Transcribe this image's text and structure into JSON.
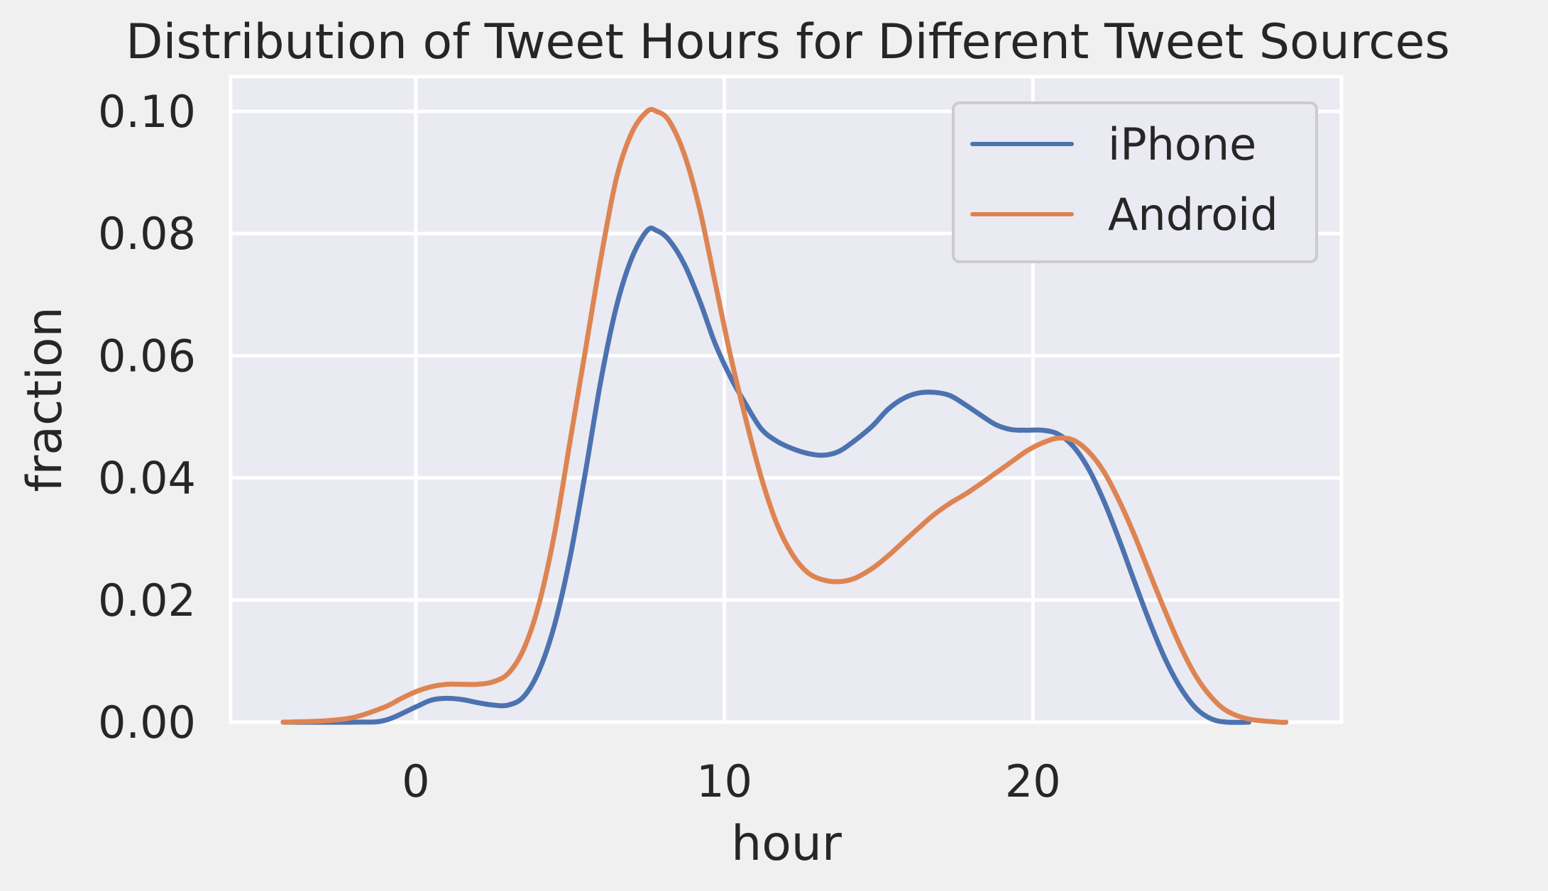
{
  "chart_data": {
    "type": "line",
    "title": "Distribution of Tweet Hours for Different Tweet Sources",
    "xlabel": "hour",
    "ylabel": "fraction",
    "xlim": [
      -6,
      30
    ],
    "ylim": [
      0,
      0.1
    ],
    "x_ticks": [
      0,
      10,
      20
    ],
    "x_tick_labels": [
      "0",
      "10",
      "20"
    ],
    "y_ticks": [
      0,
      0.02,
      0.04,
      0.06,
      0.08,
      0.1
    ],
    "y_tick_labels": [
      "0.00",
      "0.02",
      "0.04",
      "0.06",
      "0.08",
      "0.10"
    ],
    "grid": true,
    "legend_position": "top-right",
    "background_color": "#eaeaf2",
    "series": [
      {
        "name": "iPhone",
        "color": "#4c72b0",
        "points": [
          [
            -4.3,
            0.0
          ],
          [
            -2,
            0.0
          ],
          [
            -1,
            0.0003
          ],
          [
            0,
            0.0025
          ],
          [
            0.5,
            0.0036
          ],
          [
            1,
            0.0039
          ],
          [
            1.5,
            0.0037
          ],
          [
            2,
            0.0032
          ],
          [
            2.5,
            0.0028
          ],
          [
            3,
            0.0028
          ],
          [
            3.5,
            0.0042
          ],
          [
            4,
            0.0085
          ],
          [
            4.5,
            0.016
          ],
          [
            5,
            0.027
          ],
          [
            5.5,
            0.041
          ],
          [
            6,
            0.056
          ],
          [
            6.5,
            0.068
          ],
          [
            7,
            0.076
          ],
          [
            7.5,
            0.0805
          ],
          [
            7.8,
            0.0805
          ],
          [
            8.2,
            0.079
          ],
          [
            8.7,
            0.075
          ],
          [
            9.2,
            0.069
          ],
          [
            9.7,
            0.062
          ],
          [
            10.2,
            0.0565
          ],
          [
            10.7,
            0.052
          ],
          [
            11.2,
            0.048
          ],
          [
            11.7,
            0.046
          ],
          [
            12.2,
            0.0448
          ],
          [
            12.7,
            0.044
          ],
          [
            13.2,
            0.0437
          ],
          [
            13.7,
            0.0443
          ],
          [
            14.2,
            0.046
          ],
          [
            14.8,
            0.0485
          ],
          [
            15.3,
            0.0512
          ],
          [
            15.8,
            0.053
          ],
          [
            16.3,
            0.0539
          ],
          [
            16.8,
            0.054
          ],
          [
            17.3,
            0.0535
          ],
          [
            17.8,
            0.052
          ],
          [
            18.3,
            0.0503
          ],
          [
            18.8,
            0.0487
          ],
          [
            19.3,
            0.0479
          ],
          [
            19.8,
            0.0478
          ],
          [
            20.3,
            0.0478
          ],
          [
            20.8,
            0.0472
          ],
          [
            21.3,
            0.0452
          ],
          [
            21.8,
            0.0415
          ],
          [
            22.3,
            0.0362
          ],
          [
            22.8,
            0.0298
          ],
          [
            23.3,
            0.0229
          ],
          [
            23.8,
            0.0162
          ],
          [
            24.3,
            0.0102
          ],
          [
            24.8,
            0.0055
          ],
          [
            25.3,
            0.0022
          ],
          [
            25.8,
            0.0005
          ],
          [
            26.3,
            0.0
          ],
          [
            27,
            0.0
          ]
        ]
      },
      {
        "name": "Android",
        "color": "#dd8452",
        "points": [
          [
            -4.3,
            0.0
          ],
          [
            -3,
            0.0002
          ],
          [
            -2,
            0.0008
          ],
          [
            -1,
            0.0025
          ],
          [
            -0.5,
            0.0038
          ],
          [
            0,
            0.005
          ],
          [
            0.5,
            0.0058
          ],
          [
            1,
            0.0062
          ],
          [
            1.5,
            0.0062
          ],
          [
            2,
            0.0062
          ],
          [
            2.5,
            0.0066
          ],
          [
            3,
            0.008
          ],
          [
            3.5,
            0.012
          ],
          [
            4,
            0.0195
          ],
          [
            4.5,
            0.031
          ],
          [
            5,
            0.046
          ],
          [
            5.5,
            0.061
          ],
          [
            6,
            0.076
          ],
          [
            6.5,
            0.089
          ],
          [
            7,
            0.0965
          ],
          [
            7.5,
            0.1
          ],
          [
            7.8,
            0.1
          ],
          [
            8.2,
            0.0985
          ],
          [
            8.7,
            0.093
          ],
          [
            9.2,
            0.084
          ],
          [
            9.7,
            0.072
          ],
          [
            10.2,
            0.06
          ],
          [
            10.7,
            0.0495
          ],
          [
            11.2,
            0.04
          ],
          [
            11.7,
            0.0325
          ],
          [
            12.2,
            0.0275
          ],
          [
            12.7,
            0.0245
          ],
          [
            13.2,
            0.0233
          ],
          [
            13.7,
            0.023
          ],
          [
            14.2,
            0.0235
          ],
          [
            14.8,
            0.0252
          ],
          [
            15.3,
            0.0272
          ],
          [
            15.8,
            0.0295
          ],
          [
            16.3,
            0.0318
          ],
          [
            16.8,
            0.034
          ],
          [
            17.3,
            0.0358
          ],
          [
            17.8,
            0.0373
          ],
          [
            18.3,
            0.039
          ],
          [
            18.8,
            0.0408
          ],
          [
            19.3,
            0.0426
          ],
          [
            19.8,
            0.0444
          ],
          [
            20.3,
            0.0457
          ],
          [
            20.8,
            0.0465
          ],
          [
            21.3,
            0.0462
          ],
          [
            21.8,
            0.0443
          ],
          [
            22.3,
            0.041
          ],
          [
            22.8,
            0.0362
          ],
          [
            23.3,
            0.0305
          ],
          [
            23.8,
            0.0242
          ],
          [
            24.3,
            0.018
          ],
          [
            24.8,
            0.0122
          ],
          [
            25.3,
            0.0074
          ],
          [
            25.8,
            0.004
          ],
          [
            26.3,
            0.0018
          ],
          [
            27,
            0.0005
          ],
          [
            28,
            0.0
          ],
          [
            28.2,
            0.0
          ]
        ]
      }
    ]
  }
}
